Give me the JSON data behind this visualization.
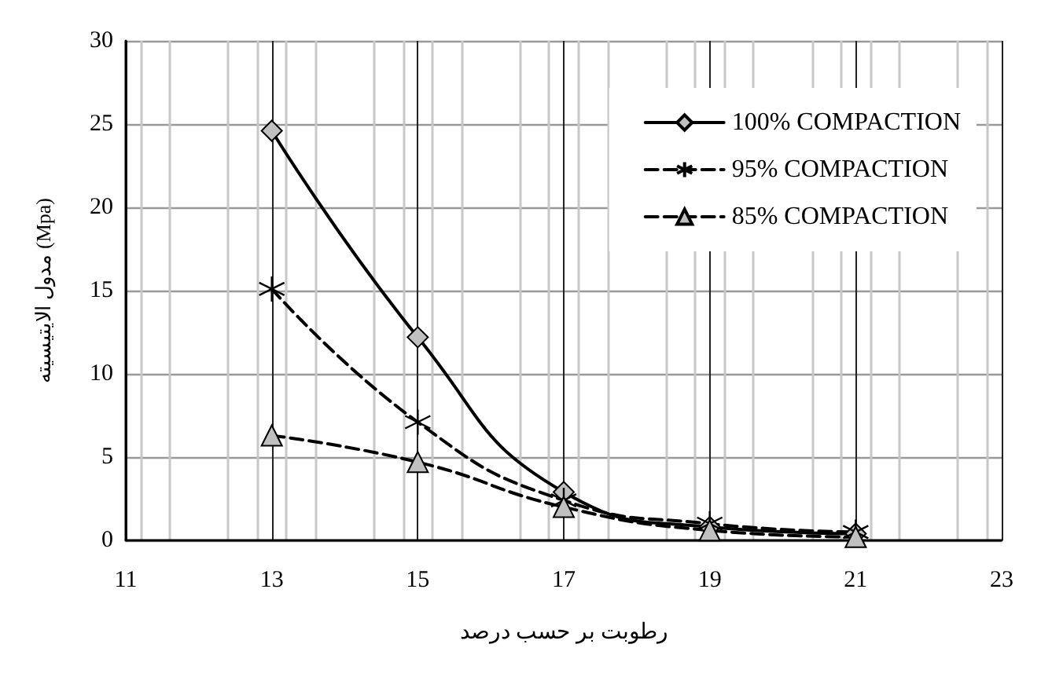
{
  "chart_data": {
    "type": "line",
    "xlabel": "رطوبت بر حسب درصد",
    "ylabel": "مدول الایتیسیته (Mpa)",
    "x": [
      13,
      15,
      17,
      19,
      21
    ],
    "series": [
      {
        "name": "100% COMPACTION",
        "color": "#000000",
        "marker": "diamond",
        "line_style": "solid",
        "values": [
          24.6,
          12.2,
          2.9,
          0.8,
          0.4
        ]
      },
      {
        "name": "95% COMPACTION",
        "color": "#000000",
        "marker": "cross",
        "line_style": "dashed",
        "values": [
          15.1,
          7.1,
          2.4,
          1.0,
          0.5
        ]
      },
      {
        "name": "85% COMPACTION",
        "color": "#000000",
        "marker": "triangle",
        "line_style": "dashed",
        "values": [
          6.3,
          4.7,
          2.0,
          0.6,
          0.2
        ]
      }
    ],
    "xlim": [
      11,
      23
    ],
    "xticks": [
      11,
      13,
      15,
      17,
      19,
      21,
      23
    ],
    "ylim": [
      0,
      30
    ],
    "yticks": [
      0,
      5,
      10,
      15,
      20,
      25,
      30
    ],
    "grid": true,
    "legend": "top right"
  }
}
